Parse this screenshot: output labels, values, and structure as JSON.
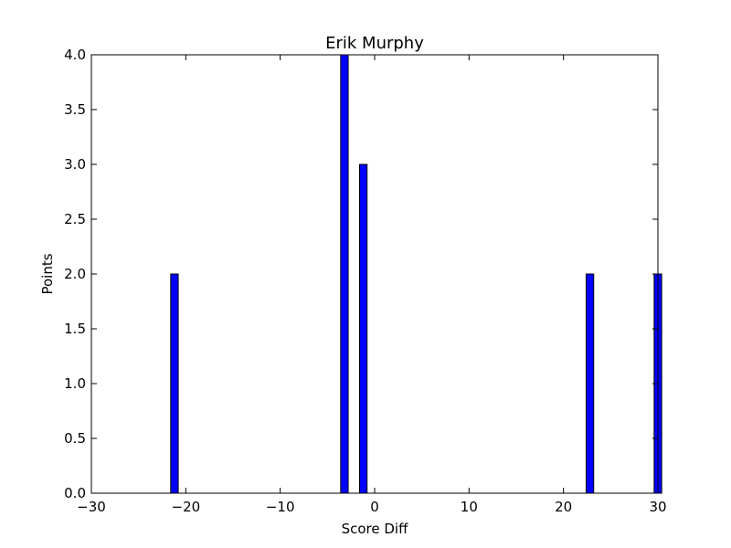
{
  "chart_data": {
    "type": "bar",
    "title": "Erik Murphy",
    "xlabel": "Score Diff",
    "ylabel": "Points",
    "xlim": [
      -30,
      30
    ],
    "ylim": [
      0,
      4.0
    ],
    "bar_width": 0.8,
    "x": [
      -21.6,
      -3.6,
      -1.6,
      22.4,
      29.6
    ],
    "values": [
      2,
      4,
      3,
      2,
      2
    ],
    "x_ticks": [
      -30,
      -20,
      -10,
      0,
      10,
      20,
      30
    ],
    "x_tick_labels": [
      "−30",
      "−20",
      "−10",
      "0",
      "10",
      "20",
      "30"
    ],
    "y_ticks": [
      0,
      0.5,
      1.0,
      1.5,
      2.0,
      2.5,
      3.0,
      3.5,
      4.0
    ],
    "y_tick_labels": [
      "0.0",
      "0.5",
      "1.0",
      "1.5",
      "2.0",
      "2.5",
      "3.0",
      "3.5",
      "4.0"
    ],
    "grid": false,
    "bar_color": "#0000ff",
    "edge_color": "#000000"
  }
}
